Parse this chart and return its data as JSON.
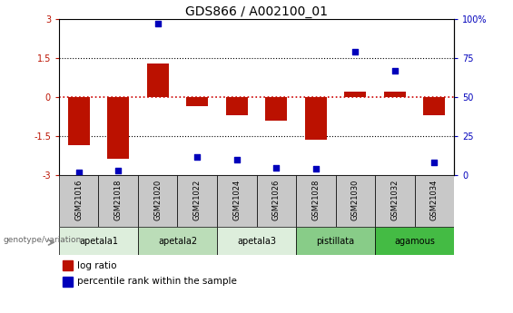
{
  "title": "GDS866 / A002100_01",
  "samples": [
    "GSM21016",
    "GSM21018",
    "GSM21020",
    "GSM21022",
    "GSM21024",
    "GSM21026",
    "GSM21028",
    "GSM21030",
    "GSM21032",
    "GSM21034"
  ],
  "log_ratio": [
    -1.85,
    -2.35,
    1.3,
    -0.35,
    -0.7,
    -0.9,
    -1.65,
    0.2,
    0.2,
    -0.7
  ],
  "percentile_rank": [
    2,
    3,
    97,
    12,
    10,
    5,
    4,
    79,
    67,
    8
  ],
  "groups": [
    {
      "name": "apetala1",
      "span": [
        0,
        2
      ],
      "color": "#DDEEDC"
    },
    {
      "name": "apetala2",
      "span": [
        2,
        4
      ],
      "color": "#BBDDB8"
    },
    {
      "name": "apetala3",
      "span": [
        4,
        6
      ],
      "color": "#DDEEDC"
    },
    {
      "name": "pistillata",
      "span": [
        6,
        8
      ],
      "color": "#88CC88"
    },
    {
      "name": "agamous",
      "span": [
        8,
        10
      ],
      "color": "#44BB44"
    }
  ],
  "ylim_left": [
    -3,
    3
  ],
  "ylim_right": [
    0,
    100
  ],
  "yticks_left": [
    -3,
    -1.5,
    0,
    1.5,
    3
  ],
  "yticks_right": [
    0,
    25,
    50,
    75,
    100
  ],
  "bar_color": "#BB1100",
  "dot_color": "#0000BB",
  "zero_line_color": "#CC0000",
  "title_fontsize": 10,
  "tick_fontsize": 7,
  "sample_gray": "#C8C8C8"
}
